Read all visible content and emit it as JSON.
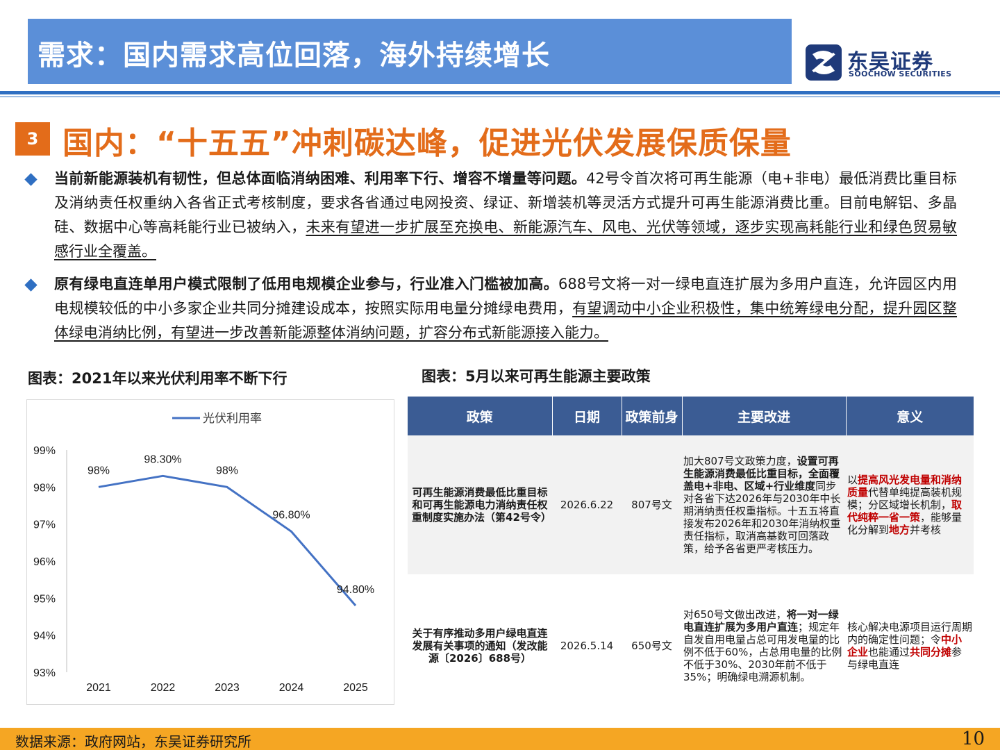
{
  "header": {
    "title": "需求：国内需求高位回落，海外持续增长",
    "logo_cn": "东吴证券",
    "logo_en": "SOOCHOW SECURITIES"
  },
  "section": {
    "number": "3",
    "title": "国内：“十五五”冲刺碳达峰，促进光伏发展保质保量"
  },
  "bullets": [
    {
      "bold": "当前新能源装机有韧性，但总体面临消纳困难、利用率下行、增容不增量等问题。",
      "plain": "42号令首次将可再生能源（电+非电）最低消费比重目标及消纳责任权重纳入各省正式考核制度，要求各省通过电网投资、绿证、新增装机等灵活方式提升可再生能源消费比重。目前电解铝、多晶硅、数据中心等高耗能行业已被纳入，",
      "underlined": "未来有望进一步扩展至充换电、新能源汽车、风电、光伏等领域，逐步实现高耗能行业和绿色贸易敏感行业全覆盖。"
    },
    {
      "bold": "原有绿电直连单用户模式限制了低用电规模企业参与，行业准入门槛被加高。",
      "plain": "688号文将一对一绿电直连扩展为多用户直连，允许园区内用电规模较低的中小多家企业共同分摊建设成本，按照实际用电量分摊绿电费用，",
      "underlined": "有望调动中小企业积极性，集中统筹绿电分配，提升园区整体绿电消纳比例，有望进一步改善新能源整体消纳问题，扩容分布式新能源接入能力。"
    }
  ],
  "chart_title": "图表：2021年以来光伏利用率不断下行",
  "chart_data": {
    "type": "line",
    "categories": [
      "2021",
      "2022",
      "2023",
      "2024",
      "2025"
    ],
    "series": [
      {
        "name": "光伏利用率",
        "values": [
          98.0,
          98.3,
          98.0,
          96.8,
          94.8
        ],
        "labels": [
          "98%",
          "98.30%",
          "98%",
          "96.80%",
          "94.80%"
        ],
        "color": "#4472c4"
      }
    ],
    "ylim": [
      93,
      99
    ],
    "yticks": [
      "93%",
      "94%",
      "95%",
      "96%",
      "97%",
      "98%",
      "99%"
    ],
    "legend": "top-center",
    "grid": false
  },
  "table": {
    "title": "图表：5月以来可再生能源主要政策",
    "headers": [
      "政策",
      "日期",
      "政策前身",
      "主要改进",
      "意义"
    ],
    "rows": [
      {
        "name": "可再生能源消费最低比重目标和可再生能源电力消纳责任权重制度实施办法（第42号令）",
        "date": "2026.6.22",
        "predecessor": "807号文",
        "imp_1": "加大807号文政策力度，",
        "imp_2": "设置可再生能源消费最低比重目标，全面覆盖电+非电、区域+行业维度",
        "imp_3": "同步对各省下达2026年与2030年中长期消纳责任权重指标。十五五将直接发布2026年和2030年消纳权重责任指标，取消高基数可回落政策，给予各省更严考核压力。",
        "mean_1": "以",
        "mean_2": "提高风光发电量和消纳质量",
        "mean_3": "代替单纯提高装机规模；分区域增长机制，",
        "mean_4": "取代纯粹一省一策",
        "mean_5": "，能够量化分解到",
        "mean_6": "地方",
        "mean_7": "并考核"
      },
      {
        "name": "关于有序推动多用户绿电直连发展有关事项的通知（发改能源〔2026〕688号）",
        "date": "2026.5.14",
        "predecessor": "650号文",
        "imp_1": "对650号文做出改进，",
        "imp_2": "将一对一绿电直连扩展为多用户直连",
        "imp_3": "；规定年自发自用电量占总可用发电量的比例不低于60%，占总用电量的比例不低于30%、2030年前不低于35%；明确绿电溯源机制。",
        "mean_1": "核心解决电源项目运行周期内的确定性问题；令",
        "mean_2": "中小企业",
        "mean_3": "也能通过",
        "mean_4": "共同分摊",
        "mean_5": "参与绿电直连"
      }
    ]
  },
  "footer": {
    "source": "数据来源：政府网站，东吴证券研究所",
    "page": "10"
  }
}
